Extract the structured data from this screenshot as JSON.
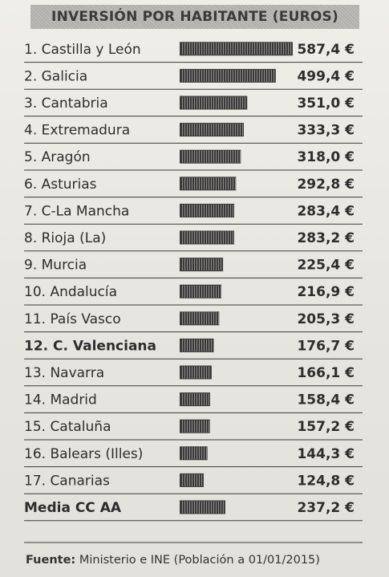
{
  "header": {
    "title": "INVERSIÓN POR HABITANTE (EUROS)"
  },
  "chart_data": {
    "type": "bar",
    "title": "INVERSIÓN POR HABITANTE (EUROS)",
    "unit": "€",
    "categories": [
      "1. Castilla y León",
      "2. Galicia",
      "3. Cantabria",
      "4. Extremadura",
      "5. Aragón",
      "6. Asturias",
      "7. C-La Mancha",
      "8. Rioja (La)",
      "9. Murcia",
      "10. Andalucía",
      "11. País Vasco",
      "12. C. Valenciana",
      "13. Navarra",
      "14. Madrid",
      "15. Cataluña",
      "16. Balears (Illes)",
      "17. Canarias",
      "Media CC AA"
    ],
    "values": [
      587.4,
      499.4,
      351.0,
      333.3,
      318.0,
      292.8,
      283.4,
      283.2,
      225.4,
      216.9,
      205.3,
      176.7,
      166.1,
      158.4,
      157.2,
      144.3,
      124.8,
      237.2
    ],
    "value_labels": [
      "587,4 €",
      "499,4 €",
      "351,0 €",
      "333,3 €",
      "318,0 €",
      "292,8 €",
      "283,4 €",
      "283,2 €",
      "225,4 €",
      "216,9 €",
      "205,3 €",
      "176,7 €",
      "166,1 €",
      "158,4 €",
      "157,2 €",
      "144,3 €",
      "124,8 €",
      "237,2 €"
    ],
    "highlighted": [
      "12. C. Valenciana",
      "Media CC AA"
    ],
    "xlim": [
      0,
      600
    ],
    "bar_color": "#3a3a3a",
    "grid": false,
    "legend": "none"
  },
  "footer": {
    "source_label": "Fuente:",
    "source_text": "Ministerio e INE (Población a 01/01/2015)"
  }
}
